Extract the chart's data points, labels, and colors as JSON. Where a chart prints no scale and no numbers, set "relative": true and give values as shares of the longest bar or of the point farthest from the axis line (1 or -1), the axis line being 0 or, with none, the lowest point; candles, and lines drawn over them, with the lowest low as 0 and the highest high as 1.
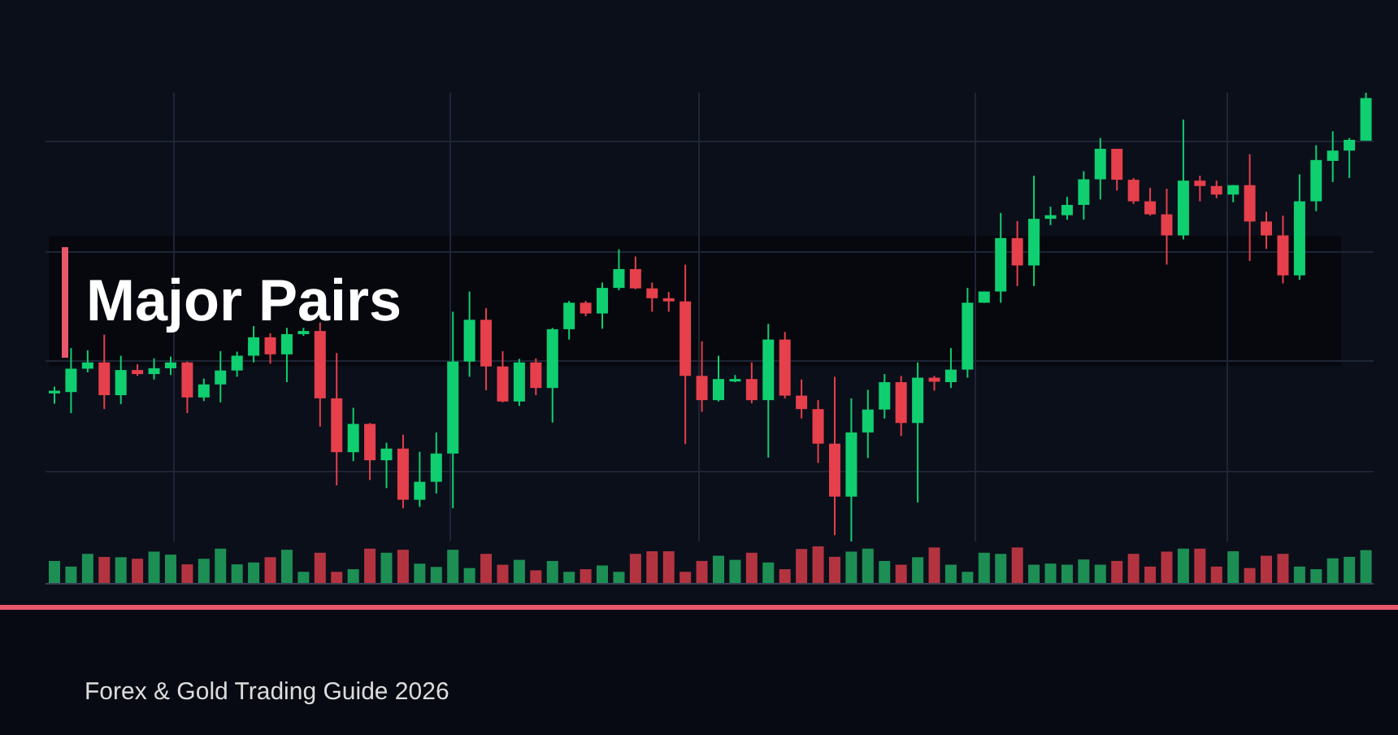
{
  "chart_data": [
    {
      "type": "candlestick",
      "title": "Major Pairs",
      "annotations": [
        "Forex & Gold Trading Guide 2026"
      ],
      "relative": true,
      "grid": true,
      "categories": [
        null,
        null,
        null,
        null,
        null,
        null,
        null,
        null,
        null,
        null,
        null,
        null,
        null,
        null,
        null,
        null,
        null,
        null,
        null,
        null,
        null,
        null,
        null,
        null,
        null,
        null,
        null,
        null,
        null,
        null,
        null,
        null,
        null,
        null,
        null,
        null,
        null,
        null,
        null,
        null,
        null,
        null,
        null,
        null,
        null,
        null,
        null,
        null,
        null,
        null,
        null,
        null,
        null,
        null,
        null,
        null,
        null,
        null,
        null,
        null,
        null,
        null,
        null,
        null,
        null,
        null,
        null,
        null,
        null,
        null,
        null,
        null,
        null,
        null,
        null,
        null,
        null,
        null,
        null,
        null
      ],
      "ohlc": [
        [
          0.33,
          0.345,
          0.307,
          0.336
        ],
        [
          0.333,
          0.431,
          0.286,
          0.385
        ],
        [
          0.385,
          0.426,
          0.377,
          0.399
        ],
        [
          0.399,
          0.461,
          0.295,
          0.326
        ],
        [
          0.326,
          0.414,
          0.306,
          0.382
        ],
        [
          0.382,
          0.395,
          0.369,
          0.373
        ],
        [
          0.373,
          0.408,
          0.361,
          0.386
        ],
        [
          0.386,
          0.412,
          0.371,
          0.399
        ],
        [
          0.399,
          0.401,
          0.286,
          0.321
        ],
        [
          0.321,
          0.363,
          0.313,
          0.35
        ],
        [
          0.35,
          0.424,
          0.31,
          0.381
        ],
        [
          0.381,
          0.423,
          0.367,
          0.414
        ],
        [
          0.414,
          0.48,
          0.399,
          0.455
        ],
        [
          0.455,
          0.464,
          0.396,
          0.417
        ],
        [
          0.417,
          0.476,
          0.355,
          0.462
        ],
        [
          0.462,
          0.476,
          0.458,
          0.469
        ],
        [
          0.469,
          0.488,
          0.256,
          0.319
        ],
        [
          0.319,
          0.42,
          0.125,
          0.199
        ],
        [
          0.199,
          0.298,
          0.179,
          0.262
        ],
        [
          0.262,
          0.264,
          0.137,
          0.181
        ],
        [
          0.181,
          0.22,
          0.119,
          0.207
        ],
        [
          0.207,
          0.238,
          0.074,
          0.093
        ],
        [
          0.093,
          0.2,
          0.077,
          0.133
        ],
        [
          0.133,
          0.243,
          0.107,
          0.196
        ],
        [
          0.196,
          0.512,
          0.074,
          0.401
        ],
        [
          0.401,
          0.557,
          0.367,
          0.494
        ],
        [
          0.494,
          0.52,
          0.337,
          0.39
        ],
        [
          0.39,
          0.424,
          0.31,
          0.312
        ],
        [
          0.312,
          0.407,
          0.302,
          0.399
        ],
        [
          0.399,
          0.408,
          0.326,
          0.342
        ],
        [
          0.342,
          0.476,
          0.265,
          0.473
        ],
        [
          0.473,
          0.536,
          0.45,
          0.532
        ],
        [
          0.532,
          0.536,
          0.502,
          0.508
        ],
        [
          0.508,
          0.577,
          0.474,
          0.565
        ],
        [
          0.565,
          0.651,
          0.56,
          0.607
        ],
        [
          0.607,
          0.635,
          0.562,
          0.564
        ],
        [
          0.564,
          0.577,
          0.512,
          0.542
        ],
        [
          0.542,
          0.556,
          0.512,
          0.535
        ],
        [
          0.535,
          0.617,
          0.217,
          0.369
        ],
        [
          0.369,
          0.446,
          0.289,
          0.315
        ],
        [
          0.315,
          0.414,
          0.312,
          0.362
        ],
        [
          0.357,
          0.371,
          0.355,
          0.362
        ],
        [
          0.362,
          0.399,
          0.308,
          0.315
        ],
        [
          0.315,
          0.485,
          0.187,
          0.45
        ],
        [
          0.45,
          0.467,
          0.319,
          0.325
        ],
        [
          0.325,
          0.361,
          0.274,
          0.295
        ],
        [
          0.295,
          0.315,
          0.175,
          0.218
        ],
        [
          0.218,
          0.367,
          0.014,
          0.1
        ],
        [
          0.1,
          0.319,
          0.0,
          0.243
        ],
        [
          0.243,
          0.338,
          0.186,
          0.294
        ],
        [
          0.294,
          0.373,
          0.274,
          0.355
        ],
        [
          0.355,
          0.369,
          0.235,
          0.264
        ],
        [
          0.264,
          0.399,
          0.087,
          0.365
        ],
        [
          0.365,
          0.369,
          0.336,
          0.356
        ],
        [
          0.355,
          0.431,
          0.342,
          0.383
        ],
        [
          0.383,
          0.565,
          0.365,
          0.532
        ],
        [
          0.532,
          0.557,
          0.532,
          0.557
        ],
        [
          0.557,
          0.732,
          0.532,
          0.676
        ],
        [
          0.676,
          0.714,
          0.569,
          0.615
        ],
        [
          0.615,
          0.815,
          0.569,
          0.719
        ],
        [
          0.719,
          0.746,
          0.705,
          0.727
        ],
        [
          0.727,
          0.768,
          0.717,
          0.75
        ],
        [
          0.75,
          0.825,
          0.717,
          0.807
        ],
        [
          0.807,
          0.899,
          0.762,
          0.875
        ],
        [
          0.875,
          0.875,
          0.782,
          0.806
        ],
        [
          0.806,
          0.81,
          0.752,
          0.758
        ],
        [
          0.758,
          0.788,
          0.726,
          0.729
        ],
        [
          0.729,
          0.786,
          0.617,
          0.682
        ],
        [
          0.682,
          0.94,
          0.673,
          0.804
        ],
        [
          0.804,
          0.815,
          0.758,
          0.792
        ],
        [
          0.792,
          0.804,
          0.765,
          0.773
        ],
        [
          0.773,
          0.794,
          0.756,
          0.794
        ],
        [
          0.794,
          0.863,
          0.625,
          0.713
        ],
        [
          0.713,
          0.735,
          0.652,
          0.682
        ],
        [
          0.682,
          0.726,
          0.575,
          0.593
        ],
        [
          0.593,
          0.818,
          0.583,
          0.758
        ],
        [
          0.758,
          0.883,
          0.736,
          0.85
        ],
        [
          0.848,
          0.914,
          0.801,
          0.871
        ],
        [
          0.871,
          0.899,
          0.81,
          0.895
        ],
        [
          0.893,
          1.0,
          0.893,
          0.988
        ]
      ],
      "colors": [
        "#10cf70",
        "#10cf70",
        "#10cf70",
        "#e5404b",
        "#10cf70",
        "#e5404b",
        "#10cf70",
        "#10cf70",
        "#e5404b",
        "#10cf70",
        "#10cf70",
        "#10cf70",
        "#10cf70",
        "#e5404b",
        "#10cf70",
        "#10cf70",
        "#e5404b",
        "#e5404b",
        "#10cf70",
        "#e5404b",
        "#10cf70",
        "#e5404b",
        "#10cf70",
        "#10cf70",
        "#10cf70",
        "#10cf70",
        "#e5404b",
        "#e5404b",
        "#10cf70",
        "#e5404b",
        "#10cf70",
        "#10cf70",
        "#e5404b",
        "#10cf70",
        "#10cf70",
        "#e5404b",
        "#e5404b",
        "#e5404b",
        "#e5404b",
        "#e5404b",
        "#10cf70",
        "#10cf70",
        "#e5404b",
        "#10cf70",
        "#e5404b",
        "#e5404b",
        "#e5404b",
        "#e5404b",
        "#10cf70",
        "#10cf70",
        "#10cf70",
        "#e5404b",
        "#10cf70",
        "#e5404b",
        "#10cf70",
        "#10cf70",
        "#10cf70",
        "#10cf70",
        "#e5404b",
        "#10cf70",
        "#10cf70",
        "#10cf70",
        "#10cf70",
        "#10cf70",
        "#e5404b",
        "#e5404b",
        "#e5404b",
        "#e5404b",
        "#10cf70",
        "#e5404b",
        "#e5404b",
        "#10cf70",
        "#e5404b",
        "#e5404b",
        "#e5404b",
        "#10cf70",
        "#10cf70",
        "#10cf70",
        "#10cf70",
        "#10cf70"
      ]
    },
    {
      "type": "bar",
      "relative": true,
      "categories": [
        null,
        null,
        null,
        null,
        null,
        null,
        null,
        null,
        null,
        null,
        null,
        null,
        null,
        null,
        null,
        null,
        null,
        null,
        null,
        null,
        null,
        null,
        null,
        null,
        null,
        null,
        null,
        null,
        null,
        null,
        null,
        null,
        null,
        null,
        null,
        null,
        null,
        null,
        null,
        null,
        null,
        null,
        null,
        null,
        null,
        null,
        null,
        null,
        null,
        null,
        null,
        null,
        null,
        null,
        null,
        null,
        null,
        null,
        null,
        null,
        null,
        null,
        null,
        null,
        null,
        null,
        null,
        null,
        null,
        null,
        null,
        null,
        null,
        null,
        null,
        null,
        null,
        null,
        null,
        null
      ],
      "values": [
        0.61,
        0.46,
        0.8,
        0.72,
        0.71,
        0.67,
        0.86,
        0.78,
        0.52,
        0.67,
        0.94,
        0.52,
        0.57,
        0.71,
        0.91,
        0.32,
        0.83,
        0.32,
        0.39,
        0.94,
        0.83,
        0.91,
        0.54,
        0.45,
        0.91,
        0.42,
        0.8,
        0.51,
        0.64,
        0.36,
        0.61,
        0.32,
        0.39,
        0.49,
        0.32,
        0.8,
        0.87,
        0.87,
        0.32,
        0.61,
        0.75,
        0.64,
        0.83,
        0.57,
        0.39,
        0.93,
        1.0,
        0.72,
        0.86,
        0.94,
        0.61,
        0.51,
        0.71,
        0.97,
        0.51,
        0.32,
        0.83,
        0.8,
        0.97,
        0.51,
        0.54,
        0.51,
        0.65,
        0.51,
        0.61,
        0.8,
        0.46,
        0.86,
        0.94,
        0.94,
        0.46,
        0.87,
        0.42,
        0.75,
        0.8,
        0.46,
        0.39,
        0.68,
        0.72,
        0.9
      ],
      "colors": [
        "#1d8f54",
        "#1d8f54",
        "#1d8f54",
        "#b33440",
        "#1d8f54",
        "#b33440",
        "#1d8f54",
        "#1d8f54",
        "#b33440",
        "#1d8f54",
        "#1d8f54",
        "#1d8f54",
        "#1d8f54",
        "#b33440",
        "#1d8f54",
        "#1d8f54",
        "#b33440",
        "#b33440",
        "#1d8f54",
        "#b33440",
        "#1d8f54",
        "#b33440",
        "#1d8f54",
        "#1d8f54",
        "#1d8f54",
        "#1d8f54",
        "#b33440",
        "#b33440",
        "#1d8f54",
        "#b33440",
        "#1d8f54",
        "#1d8f54",
        "#b33440",
        "#1d8f54",
        "#1d8f54",
        "#b33440",
        "#b33440",
        "#b33440",
        "#b33440",
        "#b33440",
        "#1d8f54",
        "#1d8f54",
        "#b33440",
        "#1d8f54",
        "#b33440",
        "#b33440",
        "#b33440",
        "#b33440",
        "#1d8f54",
        "#1d8f54",
        "#1d8f54",
        "#b33440",
        "#1d8f54",
        "#b33440",
        "#1d8f54",
        "#1d8f54",
        "#1d8f54",
        "#1d8f54",
        "#b33440",
        "#1d8f54",
        "#1d8f54",
        "#1d8f54",
        "#1d8f54",
        "#1d8f54",
        "#b33440",
        "#b33440",
        "#b33440",
        "#b33440",
        "#1d8f54",
        "#b33440",
        "#b33440",
        "#1d8f54",
        "#b33440",
        "#b33440",
        "#b33440",
        "#1d8f54",
        "#1d8f54",
        "#1d8f54",
        "#1d8f54",
        "#1d8f54"
      ]
    }
  ]
}
